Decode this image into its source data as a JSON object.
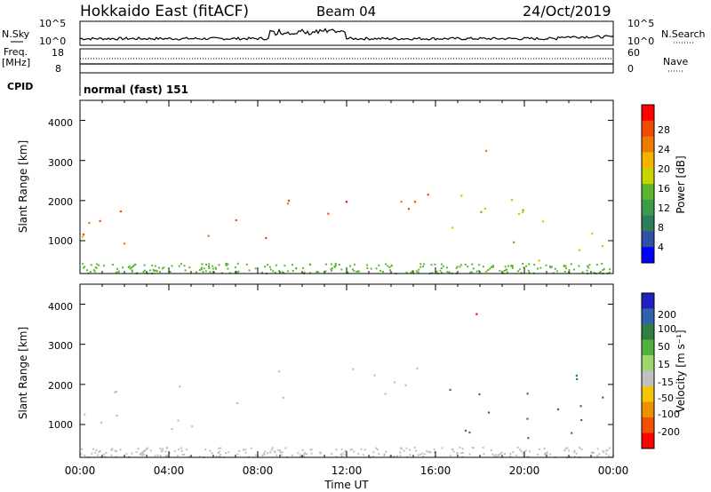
{
  "header": {
    "station": "Hokkaido East (fitACF)",
    "beam": "Beam 04",
    "date": "24/Oct/2019"
  },
  "nsky": {
    "label": "N.Sky",
    "ticks": [
      "10^5",
      "10^0"
    ],
    "right_ticks": [
      "10^5",
      "10^0"
    ],
    "right_label": "N.Search"
  },
  "freq": {
    "label": "Freq.",
    "unit": "[MHz]",
    "ticks": [
      "18",
      "8"
    ],
    "right_ticks": [
      "60",
      "0"
    ],
    "right_label": "Nave"
  },
  "cpid": {
    "label": "CPID",
    "value": "normal (fast) 151"
  },
  "xaxis": {
    "label": "Time UT",
    "ticks": [
      "00:00",
      "04:00",
      "08:00",
      "12:00",
      "16:00",
      "20:00",
      "00:00"
    ]
  },
  "power_panel": {
    "ylabel": "Slant Range [km]",
    "yticks": [
      "1000",
      "2000",
      "3000",
      "4000"
    ],
    "colorbar_label": "Power [dB]",
    "colorbar_ticks": [
      "4",
      "8",
      "12",
      "16",
      "20",
      "24",
      "28"
    ],
    "colorbar_colors": [
      "#0000ff",
      "#2f50a8",
      "#2e7d5a",
      "#3c9a4b",
      "#5ab82e",
      "#c8d400",
      "#f2b400",
      "#f07a00",
      "#f04a00",
      "#ff0000"
    ]
  },
  "velocity_panel": {
    "ylabel": "Slant Range [km]",
    "yticks": [
      "1000",
      "2000",
      "3000",
      "4000"
    ],
    "colorbar_label": "Velocity [m s⁻¹]",
    "colorbar_ticks": [
      "200",
      "100",
      "50",
      "15",
      "-15",
      "-50",
      "-100",
      "-200"
    ],
    "colorbar_colors": [
      "#2020c0",
      "#3060b0",
      "#2e8040",
      "#50b040",
      "#9ad86a",
      "#c0c0c0",
      "#f2c600",
      "#f09000",
      "#f05000",
      "#ff0000"
    ]
  },
  "chart_data": [
    {
      "type": "heatmap",
      "title": "Power",
      "xlabel": "Time UT",
      "ylabel": "Slant Range [km]",
      "x_range": [
        "00:00",
        "24:00"
      ],
      "ylim": [
        180,
        4500
      ],
      "colorbar": {
        "label": "Power [dB]",
        "ticks": [
          4,
          8,
          12,
          16,
          20,
          24,
          28
        ]
      },
      "regions": [
        {
          "t_start": 0.0,
          "t_end": 6.0,
          "r_low": 900,
          "r_high": 1800,
          "level": 24
        },
        {
          "t_start": 5.5,
          "t_end": 8.5,
          "r_low": 1000,
          "r_high": 2000,
          "level": 26
        },
        {
          "t_start": 8.5,
          "t_end": 16.5,
          "r_low": 1600,
          "r_high": 2450,
          "level": 26
        },
        {
          "t_start": 16.5,
          "t_end": 24.0,
          "r_low": 500,
          "r_high": 2200,
          "level": 18
        },
        {
          "t_start": 17.8,
          "t_end": 18.5,
          "r_low": 3200,
          "r_high": 3900,
          "level": 22
        }
      ]
    },
    {
      "type": "heatmap",
      "title": "Velocity",
      "xlabel": "Time UT",
      "ylabel": "Slant Range [km]",
      "x_range": [
        "00:00",
        "24:00"
      ],
      "ylim": [
        180,
        4500
      ],
      "colorbar": {
        "label": "Velocity [m s⁻¹]",
        "ticks": [
          200,
          100,
          50,
          15,
          -15,
          -50,
          -100,
          -200
        ]
      },
      "regions": [
        {
          "t_start": 0.0,
          "t_end": 8.5,
          "r_low": 900,
          "r_high": 2000,
          "level": 0
        },
        {
          "t_start": 8.5,
          "t_end": 16.5,
          "r_low": 1600,
          "r_high": 2450,
          "level": 0
        },
        {
          "t_start": 16.5,
          "t_end": 24.0,
          "r_low": 500,
          "r_high": 2300,
          "level": 40
        },
        {
          "t_start": 17.8,
          "t_end": 18.6,
          "r_low": 3300,
          "r_high": 3900,
          "level": -200
        }
      ]
    }
  ]
}
